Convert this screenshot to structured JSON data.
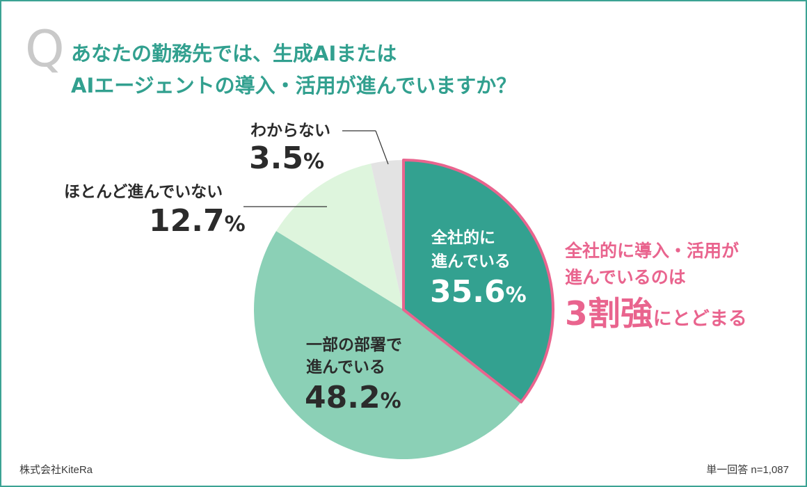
{
  "question": {
    "mark": "Q",
    "line1": "あなたの勤務先では、生成AIまたは",
    "line2": "AIエージェントの導入・活用が進んでいますか？"
  },
  "chart_data": {
    "type": "pie",
    "start_angle": 0,
    "direction": "clockwise",
    "slices": [
      {
        "label_line1": "全社的に",
        "label_line2": "進んでいる",
        "value": 35.6,
        "value_text": "35.6",
        "color": "#33a190",
        "highlight": true
      },
      {
        "label_line1": "一部の部署で",
        "label_line2": "進んでいる",
        "value": 48.2,
        "value_text": "48.2",
        "color": "#8bd0b6"
      },
      {
        "label_line1": "ほとんど進んでいない",
        "label_line2": "",
        "value": 12.7,
        "value_text": "12.7",
        "color": "#def5dd"
      },
      {
        "label_line1": "わからない",
        "label_line2": "",
        "value": 3.5,
        "value_text": "3.5",
        "color": "#e3e3e3"
      }
    ],
    "unit": "%",
    "highlight_color": "#e9648e"
  },
  "callout": {
    "line1": "全社的に導入・活用が",
    "line2": "進んでいるのは",
    "big": "3割強",
    "rest": "にとどまる"
  },
  "footer": {
    "source": "株式会社KiteRa",
    "note": "単一回答 n=1,087"
  }
}
